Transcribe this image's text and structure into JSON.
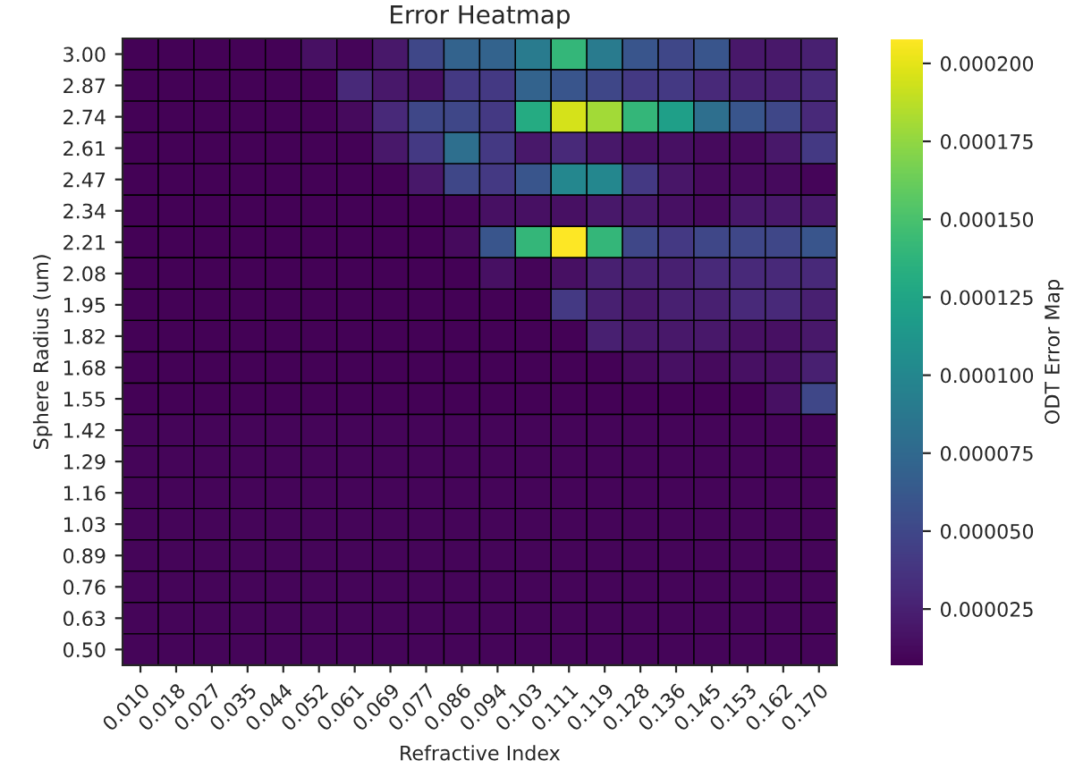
{
  "chart_data": {
    "type": "heatmap",
    "title": "Error Heatmap",
    "xlabel": "Refractive Index",
    "ylabel": "Sphere Radius (um)",
    "clabel": "ODT Error Map",
    "categories": [
      "0.010",
      "0.018",
      "0.027",
      "0.035",
      "0.044",
      "0.052",
      "0.061",
      "0.069",
      "0.077",
      "0.086",
      "0.094",
      "0.103",
      "0.111",
      "0.119",
      "0.128",
      "0.136",
      "0.145",
      "0.153",
      "0.162",
      "0.170"
    ],
    "y_categories": [
      "3.00",
      "2.87",
      "2.74",
      "2.61",
      "2.47",
      "2.34",
      "2.21",
      "2.08",
      "1.95",
      "1.82",
      "1.68",
      "1.55",
      "1.42",
      "1.29",
      "1.16",
      "1.03",
      "0.89",
      "0.76",
      "0.63",
      "0.50"
    ],
    "cells": [
      [
        8e-06,
        8e-06,
        8e-06,
        8e-06,
        8e-06,
        1.5e-05,
        1e-05,
        2e-05,
        5e-05,
        7e-05,
        7e-05,
        9e-05,
        0.00014,
        9e-05,
        6e-05,
        5e-05,
        6e-05,
        2e-05,
        2e-05,
        2.5e-05
      ],
      [
        8e-06,
        8e-06,
        8e-06,
        8e-06,
        8e-06,
        8e-06,
        3e-05,
        2e-05,
        1.5e-05,
        4e-05,
        4e-05,
        7e-05,
        6e-05,
        5e-05,
        4e-05,
        4e-05,
        3e-05,
        2.5e-05,
        2.5e-05,
        3e-05
      ],
      [
        8e-06,
        8e-06,
        8e-06,
        8e-06,
        8e-06,
        8e-06,
        1.2e-05,
        3e-05,
        5e-05,
        5e-05,
        4e-05,
        0.00013,
        0.000195,
        0.00018,
        0.00014,
        0.00012,
        8e-05,
        6e-05,
        5e-05,
        3e-05
      ],
      [
        8e-06,
        8e-06,
        8e-06,
        8e-06,
        8e-06,
        8e-06,
        8e-06,
        2e-05,
        4e-05,
        8e-05,
        4e-05,
        2e-05,
        3e-05,
        2e-05,
        1.5e-05,
        1.5e-05,
        1.2e-05,
        1.2e-05,
        2e-05,
        4e-05
      ],
      [
        8e-06,
        8e-06,
        8e-06,
        8e-06,
        8e-06,
        8e-06,
        8e-06,
        8e-06,
        2e-05,
        5e-05,
        4e-05,
        6e-05,
        0.0001,
        0.0001,
        4e-05,
        1.8e-05,
        1.2e-05,
        1.2e-05,
        1.2e-05,
        1e-05
      ],
      [
        8e-06,
        8e-06,
        8e-06,
        8e-06,
        8e-06,
        8e-06,
        8e-06,
        8e-06,
        8e-06,
        1e-05,
        1.5e-05,
        1.5e-05,
        1.5e-05,
        2e-05,
        2e-05,
        1.5e-05,
        1.2e-05,
        2e-05,
        2e-05,
        2e-05
      ],
      [
        8e-06,
        8e-06,
        8e-06,
        8e-06,
        8e-06,
        8e-06,
        8e-06,
        8e-06,
        8e-06,
        1.2e-05,
        6e-05,
        0.00014,
        0.000208,
        0.00014,
        5e-05,
        4e-05,
        5e-05,
        5e-05,
        5e-05,
        6e-05
      ],
      [
        8e-06,
        8e-06,
        8e-06,
        8e-06,
        8e-06,
        8e-06,
        8e-06,
        8e-06,
        8e-06,
        8e-06,
        1.5e-05,
        1e-05,
        1.5e-05,
        2.5e-05,
        2.5e-05,
        2.5e-05,
        3e-05,
        3e-05,
        3e-05,
        3e-05
      ],
      [
        8e-06,
        8e-06,
        8e-06,
        8e-06,
        8e-06,
        8e-06,
        8e-06,
        8e-06,
        8e-06,
        8e-06,
        8e-06,
        8e-06,
        4e-05,
        2.5e-05,
        2e-05,
        2.5e-05,
        2.5e-05,
        3e-05,
        3e-05,
        2.5e-05
      ],
      [
        8e-06,
        8e-06,
        8e-06,
        8e-06,
        8e-06,
        8e-06,
        8e-06,
        8e-06,
        8e-06,
        8e-06,
        8e-06,
        8e-06,
        8e-06,
        2.5e-05,
        2e-05,
        2e-05,
        2e-05,
        1.5e-05,
        1.5e-05,
        2e-05
      ],
      [
        8e-06,
        8e-06,
        8e-06,
        8e-06,
        8e-06,
        8e-06,
        8e-06,
        8e-06,
        8e-06,
        8e-06,
        8e-06,
        8e-06,
        8e-06,
        8e-06,
        1.2e-05,
        1.5e-05,
        1.2e-05,
        1.5e-05,
        1.5e-05,
        2.5e-05
      ],
      [
        8e-06,
        8e-06,
        8e-06,
        8e-06,
        8e-06,
        8e-06,
        8e-06,
        8e-06,
        8e-06,
        8e-06,
        8e-06,
        8e-06,
        8e-06,
        8e-06,
        8e-06,
        8e-06,
        8e-06,
        8e-06,
        1.5e-05,
        5e-05
      ],
      [
        1e-05,
        1e-05,
        1e-05,
        1e-05,
        1e-05,
        1e-05,
        1e-05,
        1e-05,
        1e-05,
        1e-05,
        1e-05,
        1e-05,
        1e-05,
        1e-05,
        1e-05,
        1e-05,
        1e-05,
        1e-05,
        1e-05,
        1e-05
      ],
      [
        1e-05,
        1e-05,
        1e-05,
        1e-05,
        1e-05,
        1e-05,
        1e-05,
        1e-05,
        1e-05,
        1e-05,
        1e-05,
        1e-05,
        1e-05,
        1e-05,
        1e-05,
        1e-05,
        1e-05,
        1e-05,
        1e-05,
        1e-05
      ],
      [
        1e-05,
        1e-05,
        1e-05,
        1e-05,
        1e-05,
        1e-05,
        1e-05,
        1e-05,
        1e-05,
        1e-05,
        1e-05,
        1e-05,
        1e-05,
        1e-05,
        1e-05,
        1e-05,
        1e-05,
        1e-05,
        1e-05,
        1e-05
      ],
      [
        1e-05,
        1e-05,
        1e-05,
        1e-05,
        1e-05,
        1e-05,
        1e-05,
        1e-05,
        1e-05,
        1e-05,
        1e-05,
        1e-05,
        1e-05,
        1e-05,
        1e-05,
        1e-05,
        1e-05,
        1e-05,
        1e-05,
        1e-05
      ],
      [
        1e-05,
        1e-05,
        1e-05,
        1e-05,
        1e-05,
        1e-05,
        1e-05,
        1e-05,
        1e-05,
        1e-05,
        1e-05,
        1e-05,
        1e-05,
        1e-05,
        1e-05,
        1e-05,
        1e-05,
        1e-05,
        1e-05,
        1e-05
      ],
      [
        1e-05,
        1e-05,
        1e-05,
        1e-05,
        1e-05,
        1e-05,
        1e-05,
        1e-05,
        1e-05,
        1e-05,
        1e-05,
        1e-05,
        1e-05,
        1e-05,
        1e-05,
        1e-05,
        1e-05,
        1e-05,
        1e-05,
        1e-05
      ],
      [
        1e-05,
        1e-05,
        1e-05,
        1e-05,
        1e-05,
        1e-05,
        1e-05,
        1e-05,
        1e-05,
        1e-05,
        1e-05,
        1e-05,
        1e-05,
        1e-05,
        1e-05,
        1e-05,
        1e-05,
        1e-05,
        1e-05,
        1e-05
      ],
      [
        1e-05,
        1e-05,
        1e-05,
        1e-05,
        1e-05,
        1e-05,
        1e-05,
        1e-05,
        1e-05,
        1e-05,
        1e-05,
        1e-05,
        1e-05,
        1e-05,
        1e-05,
        1e-05,
        1e-05,
        1e-05,
        1e-05,
        1e-05
      ]
    ],
    "clim": [
      7e-06,
      0.000208
    ],
    "cticks": [
      {
        "value": 2.5e-05,
        "label": "0.000025"
      },
      {
        "value": 5e-05,
        "label": "0.000050"
      },
      {
        "value": 7.5e-05,
        "label": "0.000075"
      },
      {
        "value": 0.0001,
        "label": "0.000100"
      },
      {
        "value": 0.000125,
        "label": "0.000125"
      },
      {
        "value": 0.00015,
        "label": "0.000150"
      },
      {
        "value": 0.000175,
        "label": "0.000175"
      },
      {
        "value": 0.0002,
        "label": "0.000200"
      }
    ]
  }
}
